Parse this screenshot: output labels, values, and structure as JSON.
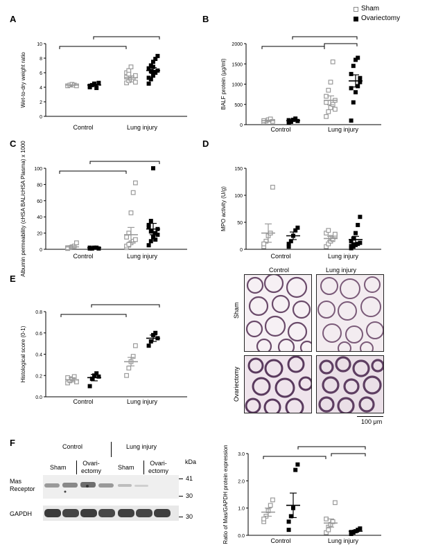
{
  "legend": {
    "sham": "Sham",
    "ovx": "Ovariectomy"
  },
  "colors": {
    "sham": "#9a9a9a",
    "ovx": "#000000"
  },
  "panels": {
    "A": "A",
    "B": "B",
    "C": "C",
    "D": "D",
    "E": "E",
    "F": "F"
  },
  "chart_data": [
    {
      "id": "A",
      "type": "scatter",
      "ylabel": "Wet-to-dry weight ratio",
      "ylim": [
        0,
        10
      ],
      "yticks": [
        0,
        2,
        4,
        6,
        8,
        10
      ],
      "group_labels": [
        "Control",
        "Lung injury"
      ],
      "series": [
        {
          "name": "Sham",
          "group": "Control",
          "values": [
            4.2,
            4.3,
            4.4,
            4.3,
            4.2
          ],
          "mean": 4.3,
          "sem": 0.05
        },
        {
          "name": "Ovariectomy",
          "group": "Control",
          "values": [
            4.0,
            4.3,
            4.5,
            3.9,
            4.6,
            4.2
          ],
          "mean": 4.3,
          "sem": 0.12
        },
        {
          "name": "Sham",
          "group": "Lung injury",
          "values": [
            4.6,
            4.9,
            5.1,
            5.3,
            5.6,
            6.0,
            6.3,
            6.8,
            5.0,
            4.7,
            5.4,
            5.8
          ],
          "mean": 5.3,
          "sem": 0.25
        },
        {
          "name": "Ovariectomy",
          "group": "Lung injury",
          "values": [
            4.5,
            5.1,
            5.6,
            6.0,
            6.3,
            6.6,
            7.0,
            7.5,
            7.9,
            8.3,
            5.3,
            6.2,
            6.8
          ],
          "mean": 6.3,
          "sem": 0.4
        }
      ]
    },
    {
      "id": "B",
      "type": "scatter",
      "ylabel": "BALF protein (μg/ml)",
      "ylim": [
        0,
        2000
      ],
      "yticks": [
        0,
        500,
        1000,
        1500,
        2000
      ],
      "group_labels": [
        "Control",
        "Lung injury"
      ],
      "series": [
        {
          "name": "Sham",
          "group": "Control",
          "values": [
            60,
            90,
            120,
            140,
            80,
            100
          ],
          "mean": 100,
          "sem": 15
        },
        {
          "name": "Ovariectomy",
          "group": "Control",
          "values": [
            50,
            80,
            120,
            150,
            90,
            110,
            70
          ],
          "mean": 100,
          "sem": 15
        },
        {
          "name": "Sham",
          "group": "Lung injury",
          "values": [
            200,
            320,
            420,
            500,
            600,
            700,
            850,
            1050,
            1550,
            380,
            550
          ],
          "mean": 600,
          "sem": 110
        },
        {
          "name": "Ovariectomy",
          "group": "Lung injury",
          "values": [
            100,
            550,
            800,
            950,
            1050,
            1250,
            1450,
            1600,
            1650,
            1150,
            900
          ],
          "mean": 1080,
          "sem": 150
        }
      ]
    },
    {
      "id": "C",
      "type": "scatter",
      "ylabel": "Albumin permeability (cHSA BAL/cHSA Plasma) x 1000",
      "ylim": [
        0,
        100
      ],
      "yticks": [
        0,
        20,
        40,
        60,
        80,
        100
      ],
      "group_labels": [
        "Control",
        "Lung injury"
      ],
      "series": [
        {
          "name": "Sham",
          "group": "Control",
          "values": [
            1,
            2,
            3,
            4,
            8,
            2
          ],
          "mean": 3,
          "sem": 1.5
        },
        {
          "name": "Ovariectomy",
          "group": "Control",
          "values": [
            1,
            1,
            2,
            2,
            1,
            2
          ],
          "mean": 2,
          "sem": 0.5
        },
        {
          "name": "Sham",
          "group": "Lung injury",
          "values": [
            2,
            5,
            8,
            10,
            12,
            15,
            20,
            45,
            70,
            82,
            4,
            6
          ],
          "mean": 18,
          "sem": 9
        },
        {
          "name": "Ovariectomy",
          "group": "Lung injury",
          "values": [
            5,
            10,
            15,
            20,
            25,
            30,
            35,
            100,
            12,
            18,
            28,
            22
          ],
          "mean": 25,
          "sem": 7
        }
      ]
    },
    {
      "id": "D",
      "type": "scatter",
      "ylabel": "MPO activity (U/g)",
      "ylim": [
        0,
        150
      ],
      "yticks": [
        0,
        50,
        100,
        150
      ],
      "group_labels": [
        "Control",
        "Lung injury"
      ],
      "series": [
        {
          "name": "Sham",
          "group": "Control",
          "values": [
            5,
            15,
            25,
            30,
            115,
            10
          ],
          "mean": 30,
          "sem": 17
        },
        {
          "name": "Ovariectomy",
          "group": "Control",
          "values": [
            5,
            15,
            25,
            35,
            40,
            10
          ],
          "mean": 25,
          "sem": 7
        },
        {
          "name": "Sham",
          "group": "Lung injury",
          "values": [
            5,
            10,
            15,
            20,
            25,
            30,
            35,
            22,
            18,
            28
          ],
          "mean": 20,
          "sem": 4
        },
        {
          "name": "Ovariectomy",
          "group": "Lung injury",
          "values": [
            2,
            5,
            8,
            10,
            12,
            15,
            20,
            30,
            45,
            60,
            6,
            9
          ],
          "mean": 18,
          "sem": 6
        }
      ]
    },
    {
      "id": "E",
      "type": "scatter",
      "ylabel": "Histological score (0-1)",
      "ylim": [
        0,
        0.8
      ],
      "yticks": [
        0.0,
        0.2,
        0.4,
        0.6,
        0.8
      ],
      "group_labels": [
        "Control",
        "Lung injury"
      ],
      "series": [
        {
          "name": "Sham",
          "group": "Control",
          "values": [
            0.13,
            0.15,
            0.17,
            0.19,
            0.14,
            0.18
          ],
          "mean": 0.16,
          "sem": 0.02
        },
        {
          "name": "Ovariectomy",
          "group": "Control",
          "values": [
            0.1,
            0.17,
            0.2,
            0.22,
            0.19
          ],
          "mean": 0.18,
          "sem": 0.03
        },
        {
          "name": "Sham",
          "group": "Lung injury",
          "values": [
            0.2,
            0.27,
            0.33,
            0.38,
            0.48
          ],
          "mean": 0.33,
          "sem": 0.04
        },
        {
          "name": "Ovariectomy",
          "group": "Lung injury",
          "values": [
            0.48,
            0.52,
            0.58,
            0.6,
            0.55
          ],
          "mean": 0.55,
          "sem": 0.03
        }
      ]
    },
    {
      "id": "F",
      "type": "scatter",
      "ylabel": "Ratio of Mas/GAPDH protein expression",
      "ylim": [
        0,
        3.0
      ],
      "yticks": [
        0.0,
        1.0,
        2.0,
        3.0
      ],
      "group_labels": [
        "Control",
        "Lung injury"
      ],
      "series": [
        {
          "name": "Sham",
          "group": "Control",
          "values": [
            0.5,
            0.7,
            0.9,
            1.1,
            1.3,
            0.6
          ],
          "mean": 0.85,
          "sem": 0.15
        },
        {
          "name": "Ovariectomy",
          "group": "Control",
          "values": [
            0.2,
            0.7,
            1.0,
            2.4,
            2.6,
            0.5
          ],
          "mean": 1.1,
          "sem": 0.45
        },
        {
          "name": "Sham",
          "group": "Lung injury",
          "values": [
            0.1,
            0.3,
            0.4,
            0.5,
            1.2,
            0.6,
            0.2
          ],
          "mean": 0.45,
          "sem": 0.15
        },
        {
          "name": "Ovariectomy",
          "group": "Lung injury",
          "values": [
            0.05,
            0.1,
            0.15,
            0.2,
            0.25,
            0.12
          ],
          "mean": 0.15,
          "sem": 0.04
        }
      ]
    }
  ],
  "histology": {
    "col_control": "Control",
    "col_injury": "Lung injury",
    "row_sham": "Sham",
    "row_ovx": "Ovariectomy",
    "scale": "100 μm"
  },
  "blot": {
    "control": "Control",
    "injury": "Lung injury",
    "sham1": "Sham",
    "ovx1": "Ovari-\nectomy",
    "sham2": "Sham",
    "ovx2": "Ovari-\nectomy",
    "kda": "kDa",
    "mas": "Mas\nReceptor",
    "gapdh": "GAPDH",
    "m41": "41",
    "m30a": "30",
    "m30b": "30"
  }
}
